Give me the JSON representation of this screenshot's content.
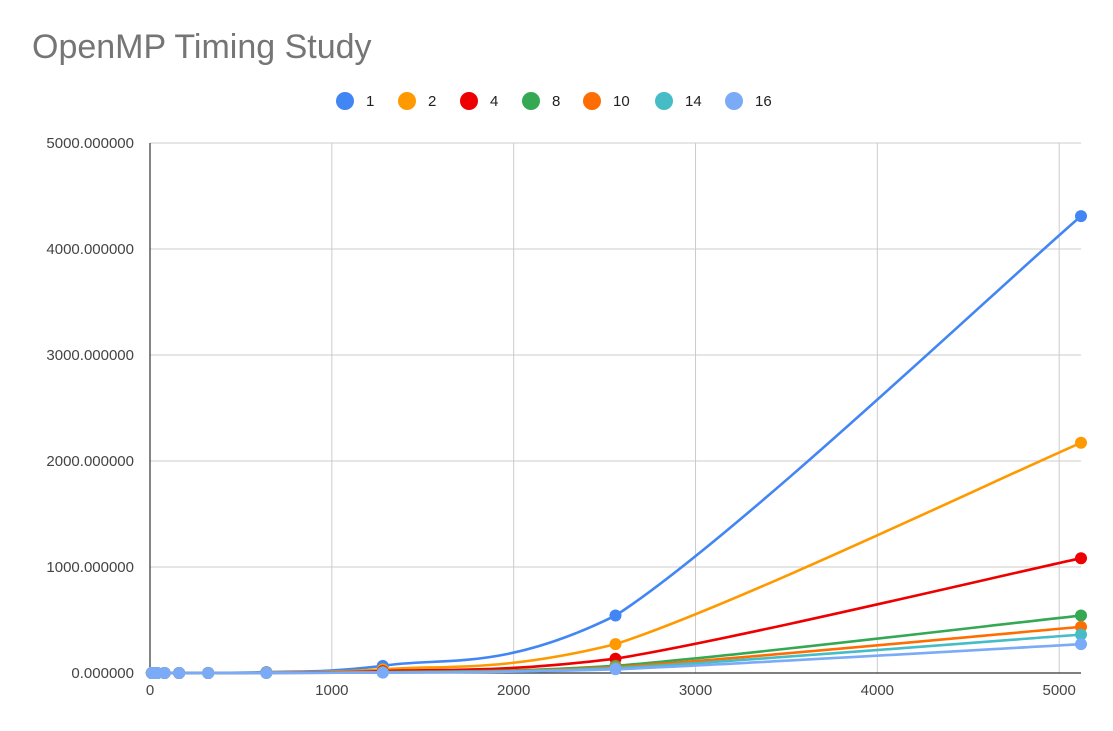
{
  "chart_data": {
    "type": "line",
    "title": "OpenMP Timing Study",
    "xlabel": "",
    "ylabel": "",
    "xlim": [
      0,
      5120
    ],
    "ylim": [
      0,
      5000
    ],
    "x_ticks": [
      "0",
      "1000",
      "2000",
      "3000",
      "4000",
      "5000"
    ],
    "x_tick_values": [
      0,
      1000,
      2000,
      3000,
      4000,
      5000
    ],
    "y_ticks": [
      "0.000000",
      "1000.000000",
      "2000.000000",
      "3000.000000",
      "4000.000000",
      "5000.000000"
    ],
    "y_tick_values": [
      0,
      1000,
      2000,
      3000,
      4000,
      5000
    ],
    "grid": true,
    "legend_position": "top",
    "x": [
      10,
      20,
      40,
      80,
      160,
      320,
      640,
      1280,
      2560,
      5120
    ],
    "series": [
      {
        "name": "1",
        "color": "#4285F4",
        "values": [
          0,
          0,
          0,
          0.1,
          0.5,
          1.2,
          8.4,
          67,
          542,
          4310
        ]
      },
      {
        "name": "2",
        "color": "#FF9900",
        "values": [
          0,
          0,
          0,
          0.1,
          0.3,
          0.7,
          4.2,
          34,
          272,
          2172
        ]
      },
      {
        "name": "4",
        "color": "#EE0000",
        "values": [
          0,
          0,
          0,
          0,
          0.1,
          0.3,
          2.1,
          17,
          135,
          1083
        ]
      },
      {
        "name": "8",
        "color": "#34A853",
        "values": [
          0,
          0,
          0,
          0,
          0.1,
          0.2,
          1.1,
          9,
          68,
          542
        ]
      },
      {
        "name": "10",
        "color": "#FF6D01",
        "values": [
          0,
          0,
          0,
          0,
          0,
          0.1,
          0.9,
          7,
          55,
          435
        ]
      },
      {
        "name": "14",
        "color": "#46BDC6",
        "values": [
          0,
          0,
          0,
          0,
          0,
          0.1,
          0.7,
          5,
          45,
          362
        ]
      },
      {
        "name": "16",
        "color": "#7BAAF7",
        "values": [
          0,
          0,
          0,
          0,
          0,
          0.1,
          0.6,
          4,
          35,
          272
        ]
      }
    ]
  }
}
